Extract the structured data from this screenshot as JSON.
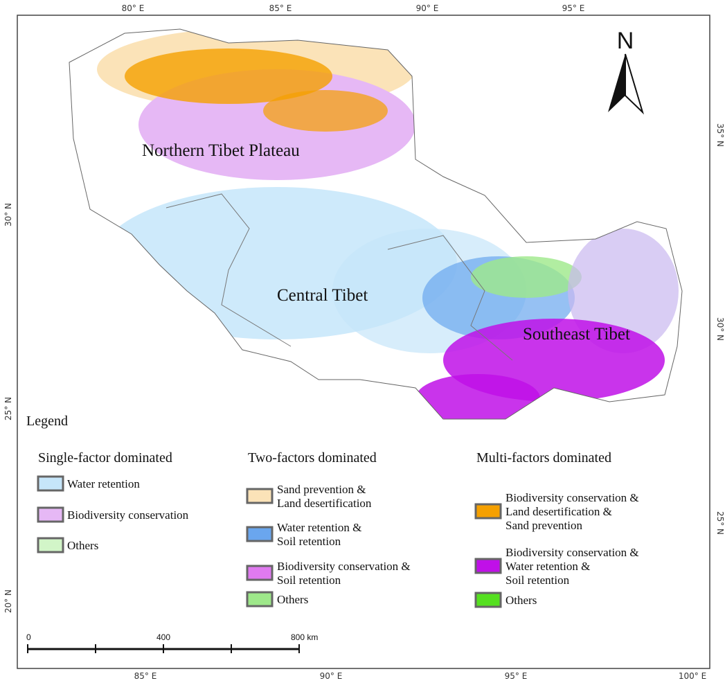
{
  "map": {
    "top_labels": [
      "80° E",
      "85° E",
      "90° E",
      "95° E"
    ],
    "bottom_labels": [
      "85° E",
      "90° E",
      "95° E",
      "100° E"
    ],
    "left_labels": [
      "30° N",
      "25° N",
      "20° N"
    ],
    "right_labels": [
      "35° N",
      "30° N",
      "25° N"
    ],
    "north": "N",
    "regions": [
      "Northern Tibet Plateau",
      "Central Tibet",
      "Southeast Tibet"
    ]
  },
  "legend": {
    "title": "Legend",
    "groups": [
      {
        "title": "Single-factor dominated",
        "items": [
          {
            "lines": [
              "Water retention"
            ],
            "color": "#c6e6fa"
          },
          {
            "lines": [
              "Biodiversity conservation"
            ],
            "color": "#e6b8f5"
          },
          {
            "lines": [
              "Others"
            ],
            "color": "#d2f5c8"
          }
        ]
      },
      {
        "title": "Two-factors dominated",
        "items": [
          {
            "lines": [
              "Sand prevention &",
              "Land desertification"
            ],
            "color": "#fbe3b8"
          },
          {
            "lines": [
              "Water retention &",
              "Soil retention"
            ],
            "color": "#6aa6ee"
          },
          {
            "lines": [
              "Biodiversity conservation &",
              "Soil retention"
            ],
            "color": "#e07af0"
          },
          {
            "lines": [
              "Others"
            ],
            "color": "#9ee88a"
          }
        ]
      },
      {
        "title": "Multi-factors dominated",
        "items": [
          {
            "lines": [
              "Biodiversity conservation &",
              "Land desertification &",
              "Sand prevention"
            ],
            "color": "#f5a000"
          },
          {
            "lines": [
              "Biodiversity conservation &",
              "Water retention &",
              "Soil retention"
            ],
            "color": "#c010e8"
          },
          {
            "lines": [
              "Others"
            ],
            "color": "#55e020"
          }
        ]
      }
    ]
  },
  "scale_bar": {
    "labels": [
      "0",
      "400",
      "800 km"
    ]
  }
}
